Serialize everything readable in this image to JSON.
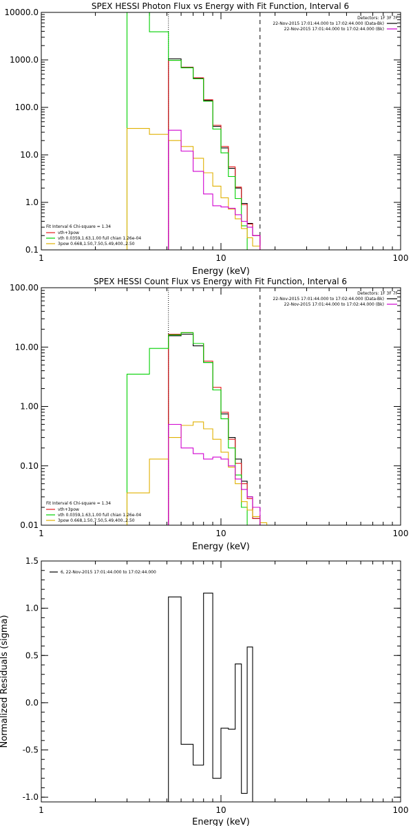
{
  "colors": {
    "background": "#ffffff",
    "axes": "#000000",
    "black": "#000000",
    "red": "#e41a1c",
    "green": "#00d000",
    "yellow": "#e0b000",
    "magenta": "#d000d0"
  },
  "chart_data": [
    {
      "type": "line",
      "title": "SPEX HESSI Photon Flux vs Energy with Fit Function, Interval 6",
      "xlabel": "Energy (keV)",
      "ylabel": "",
      "xscale": "log",
      "yscale": "log",
      "xlim": [
        1,
        100
      ],
      "ylim": [
        0.1,
        10000
      ],
      "xticks": [
        {
          "v": 1,
          "label": "1"
        },
        {
          "v": 10,
          "label": "10"
        },
        {
          "v": 100,
          "label": "100"
        }
      ],
      "yticks": [
        {
          "v": 0.1,
          "label": "0.1"
        },
        {
          "v": 1,
          "label": "1.0"
        },
        {
          "v": 10,
          "label": "10.0"
        },
        {
          "v": 100,
          "label": "100.0"
        },
        {
          "v": 1000,
          "label": "1000.0"
        },
        {
          "v": 10000,
          "label": "10000.0"
        }
      ],
      "vlines": [
        {
          "x": 5.1,
          "style": "dotted"
        },
        {
          "x": 16.5,
          "style": "dashed"
        }
      ],
      "legend_top_right": [
        "Detectors: 1F 3F 7F",
        "22-Nov-2015 17:01:44.000 to 17:02:44.000 (Data-Bk)",
        "22-Nov-2015 17:01:44.000 to 17:02:44.000 (Bk)"
      ],
      "legend_bottom_left": [
        "Fit Interval 6   Chi-square = 1.34",
        "vth+3pow",
        "vth 0.0359,1.63,1.00  full chian 1.26e-04",
        "3pow 0.668,1.50,7.50,5.49,400.,2.50"
      ],
      "edges": [
        3.0,
        4.0,
        5.1,
        6.0,
        7.0,
        8.0,
        9.0,
        10.0,
        11.0,
        12.0,
        13.0,
        14.0,
        15.0,
        16.5,
        18.0
      ],
      "series": [
        {
          "name": "22-Nov-2015 17:01:44.000 to 17:02:44.000 (Data-Bk)",
          "color": "black",
          "start": 2,
          "values": [
            1050,
            700,
            410,
            140,
            40,
            14,
            5.2,
            2.0,
            0.95,
            0.36,
            0.2
          ]
        },
        {
          "name": "vth+3pow",
          "color": "red",
          "start": 2,
          "values": [
            980,
            690,
            420,
            145,
            42,
            15,
            5.6,
            2.1,
            0.9,
            0.35,
            0.2
          ]
        },
        {
          "name": "vth",
          "color": "green",
          "start": 0,
          "values": [
            12000,
            3900,
            980,
            680,
            400,
            135,
            35,
            11,
            3.5,
            1.2,
            0.32,
            0.1,
            0.05
          ]
        },
        {
          "name": "3pow",
          "color": "yellow",
          "start": 0,
          "values": [
            36,
            27,
            20,
            15,
            8.5,
            4.2,
            2.2,
            1.25,
            0.72,
            0.45,
            0.28,
            0.18,
            0.12,
            0.1
          ]
        },
        {
          "name": "(Bk)",
          "color": "magenta",
          "start": 2,
          "values": [
            33,
            12,
            4.5,
            1.5,
            0.85,
            0.8,
            0.75,
            0.55,
            0.4,
            0.3,
            0.2
          ]
        }
      ]
    },
    {
      "type": "line",
      "title": "SPEX HESSI Count Flux vs Energy with Fit Function, Interval 6",
      "xlabel": "Energy (keV)",
      "ylabel": "",
      "xscale": "log",
      "yscale": "log",
      "xlim": [
        1,
        100
      ],
      "ylim": [
        0.01,
        100
      ],
      "xticks": [
        {
          "v": 1,
          "label": "1"
        },
        {
          "v": 10,
          "label": "10"
        },
        {
          "v": 100,
          "label": "100"
        }
      ],
      "yticks": [
        {
          "v": 0.01,
          "label": "0.01"
        },
        {
          "v": 0.1,
          "label": "0.10"
        },
        {
          "v": 1,
          "label": "1.00"
        },
        {
          "v": 10,
          "label": "10.00"
        },
        {
          "v": 100,
          "label": "100.00"
        }
      ],
      "vlines": [
        {
          "x": 5.1,
          "style": "dotted"
        },
        {
          "x": 16.5,
          "style": "dashed"
        }
      ],
      "legend_top_right": [
        "Detectors: 1F 3F 7F",
        "22-Nov-2015 17:01:44.000 to 17:02:44.000 (Data-Bk)",
        "22-Nov-2015 17:01:44.000 to 17:02:44.000 (Bk)"
      ],
      "legend_bottom_left": [
        "Fit Interval 6   Chi-square = 1.34",
        "vth+3pow",
        "vth 0.0359,1.63,1.00  full chian 1.26e-04",
        "3pow 0.668,1.50,7.50,5.49,400.,2.50"
      ],
      "edges": [
        3.0,
        4.0,
        5.1,
        6.0,
        7.0,
        8.0,
        9.0,
        10.0,
        11.0,
        12.0,
        13.0,
        14.0,
        15.0,
        16.5,
        18.0
      ],
      "series": [
        {
          "name": "22-Nov-2015 17:01:44.000 to 17:02:44.000 (Data-Bk)",
          "color": "black",
          "start": 2,
          "values": [
            15.5,
            16.5,
            10.5,
            5.5,
            1.9,
            0.75,
            0.3,
            0.13,
            0.055,
            0.03,
            0.013,
            0.01
          ]
        },
        {
          "name": "vth+3pow",
          "color": "red",
          "start": 2,
          "values": [
            16.5,
            17.5,
            11.5,
            5.8,
            2.1,
            0.8,
            0.28,
            0.11,
            0.05,
            0.028,
            0.013,
            0.01
          ]
        },
        {
          "name": "vth",
          "color": "green",
          "start": 0,
          "values": [
            3.5,
            9.5,
            16,
            17.5,
            11.5,
            5.5,
            1.9,
            0.62,
            0.2,
            0.07,
            0.02,
            0.01
          ]
        },
        {
          "name": "3pow",
          "color": "yellow",
          "start": 0,
          "values": [
            0.035,
            0.13,
            0.3,
            0.48,
            0.55,
            0.42,
            0.28,
            0.17,
            0.095,
            0.05,
            0.025,
            0.018,
            0.014,
            0.011
          ]
        },
        {
          "name": "(Bk)",
          "color": "magenta",
          "start": 2,
          "values": [
            0.5,
            0.2,
            0.16,
            0.13,
            0.14,
            0.13,
            0.1,
            0.06,
            0.04,
            0.03,
            0.02
          ]
        }
      ]
    },
    {
      "type": "line",
      "title": "",
      "xlabel": "Energy (keV)",
      "ylabel": "Normalized Residuals (sigma)",
      "xscale": "log",
      "yscale": "linear",
      "xlim": [
        1,
        100
      ],
      "ylim": [
        -1.05,
        1.5
      ],
      "xticks": [
        {
          "v": 1,
          "label": "1"
        },
        {
          "v": 10,
          "label": "10"
        },
        {
          "v": 100,
          "label": "100"
        }
      ],
      "yticks": [
        {
          "v": -1.0,
          "label": "-1.0"
        },
        {
          "v": -0.5,
          "label": "-0.5"
        },
        {
          "v": 0.0,
          "label": "0.0"
        },
        {
          "v": 0.5,
          "label": "0.5"
        },
        {
          "v": 1.0,
          "label": "1.0"
        },
        {
          "v": 1.5,
          "label": "1.5"
        }
      ],
      "legend_top_left": [
        "6, 22-Nov-2015 17:01:44.000 to 17:02:44.000"
      ],
      "edges": [
        5.1,
        6.0,
        7.0,
        8.0,
        9.0,
        10.0,
        11.0,
        12.0,
        13.0,
        14.0,
        15.0,
        16.5
      ],
      "series": [
        {
          "name": "6, 22-Nov-2015 17:01:44.000 to 17:02:44.000",
          "color": "black",
          "start": 0,
          "values": [
            1.12,
            -0.44,
            -0.66,
            1.16,
            -0.8,
            -0.27,
            -0.28,
            0.41,
            -0.96,
            0.59
          ]
        }
      ]
    }
  ]
}
